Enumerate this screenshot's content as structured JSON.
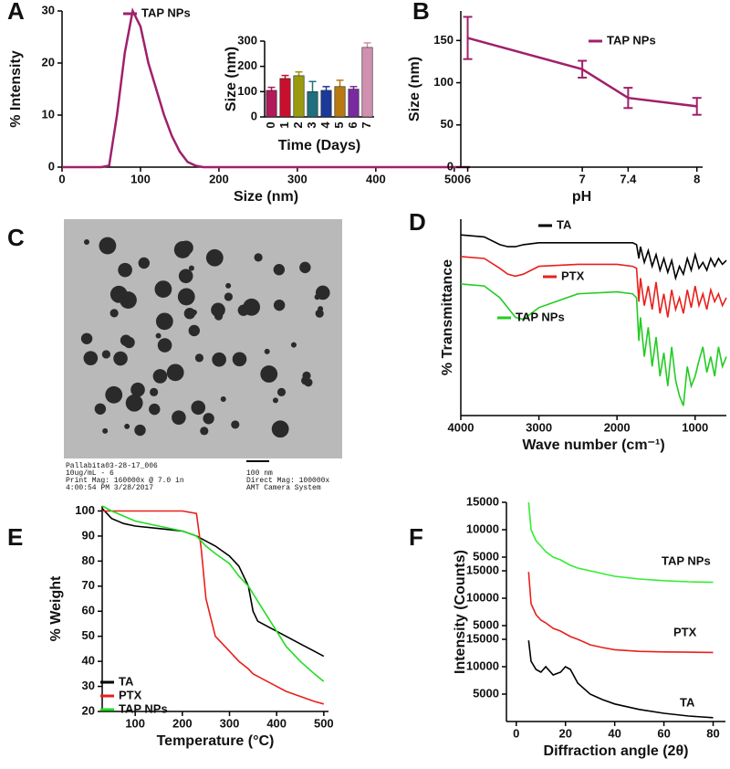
{
  "chart_data": [
    {
      "panel_label": "A",
      "type": "line",
      "xlabel": "Size (nm)",
      "ylabel": "% Intensity",
      "x": [
        0,
        50,
        60,
        70,
        80,
        90,
        100,
        110,
        120,
        130,
        140,
        150,
        160,
        170,
        180,
        200,
        300,
        400,
        500,
        520
      ],
      "xlim": [
        0,
        520
      ],
      "xticks": [
        0,
        100,
        200,
        300,
        400,
        500
      ],
      "ylim": [
        0,
        30
      ],
      "yticks": [
        0,
        10,
        20,
        30
      ],
      "series": [
        {
          "name": "TAP NPs",
          "color": "#a0206a",
          "values": [
            0,
            0,
            0.3,
            10,
            22,
            30,
            27,
            20,
            15,
            10,
            6,
            3,
            1,
            0.3,
            0,
            0,
            0,
            0,
            0,
            0
          ]
        }
      ]
    },
    {
      "type": "bar",
      "xlabel": "Time (Days)",
      "ylabel": "Size (nm)",
      "categories": [
        "0",
        "1",
        "2",
        "3",
        "4",
        "5",
        "6",
        "7"
      ],
      "values": [
        105,
        152,
        163,
        100,
        105,
        120,
        110,
        275
      ],
      "errors": [
        12,
        12,
        15,
        40,
        15,
        25,
        10,
        18
      ],
      "colors": [
        "#b0195a",
        "#c8102e",
        "#9a9a10",
        "#1f6f7f",
        "#1a3a9a",
        "#b87a10",
        "#7a2aa0",
        "#d090b0"
      ],
      "ylim": [
        0,
        300
      ],
      "yticks": [
        0,
        100,
        200,
        300
      ]
    },
    {
      "panel_label": "B",
      "type": "line",
      "xlabel": "pH",
      "ylabel": "Size (nm)",
      "x": [
        6,
        7,
        7.4,
        8
      ],
      "xlim": [
        5.94,
        8.05
      ],
      "xticks": [
        6,
        7,
        7.4,
        8
      ],
      "ylim": [
        0,
        185
      ],
      "yticks": [
        0,
        50,
        100,
        150
      ],
      "series": [
        {
          "name": "TAP NPs",
          "color": "#a0206a",
          "values": [
            153,
            116,
            82,
            72
          ],
          "errors": [
            25,
            10,
            12,
            10
          ]
        }
      ]
    },
    {
      "panel_label": "D",
      "type": "line",
      "xlabel": "Wave number (cm⁻¹)",
      "ylabel": "% Transmittance",
      "x": [
        4000,
        3700,
        3500,
        3400,
        3300,
        3200,
        3000,
        2500,
        2000,
        1800,
        1750,
        1720,
        1700,
        1650,
        1600,
        1550,
        1500,
        1450,
        1400,
        1350,
        1300,
        1250,
        1200,
        1150,
        1100,
        1050,
        1000,
        950,
        900,
        850,
        800,
        750,
        700,
        650,
        600
      ],
      "xlim": [
        4000,
        600
      ],
      "xticks": [
        4000,
        3000,
        2000,
        1000
      ],
      "ylim": [
        0,
        100
      ],
      "series": [
        {
          "name": "TA",
          "color": "#000000",
          "values": [
            92,
            91,
            87,
            86,
            86,
            87,
            88,
            88,
            88,
            88,
            87,
            80,
            86,
            78,
            84,
            76,
            82,
            74,
            80,
            73,
            79,
            70,
            76,
            72,
            80,
            74,
            82,
            75,
            78,
            74,
            80,
            76,
            80,
            77,
            79
          ]
        },
        {
          "name": "PTX",
          "color": "#e8201c",
          "values": [
            81,
            80,
            75,
            72,
            71,
            72,
            76,
            77,
            77,
            76,
            75,
            58,
            70,
            56,
            66,
            54,
            68,
            52,
            62,
            50,
            64,
            54,
            60,
            52,
            64,
            55,
            66,
            56,
            62,
            54,
            64,
            58,
            62,
            56,
            60
          ]
        },
        {
          "name": "TAP NPs",
          "color": "#22cc22",
          "values": [
            67,
            66,
            60,
            55,
            50,
            49,
            55,
            62,
            63,
            62,
            60,
            38,
            50,
            30,
            45,
            25,
            40,
            20,
            32,
            15,
            35,
            18,
            10,
            5,
            25,
            15,
            20,
            28,
            35,
            22,
            30,
            20,
            35,
            25,
            30
          ]
        }
      ]
    },
    {
      "panel_label": "E",
      "type": "line",
      "xlabel": "Temperature (°C)",
      "ylabel": "% Weight",
      "x": [
        30,
        50,
        75,
        100,
        150,
        200,
        230,
        240,
        250,
        270,
        300,
        320,
        340,
        350,
        360,
        380,
        400,
        420,
        450,
        480,
        500
      ],
      "xlim": [
        30,
        510
      ],
      "xticks": [
        100,
        200,
        300,
        400,
        500
      ],
      "ylim": [
        20,
        102
      ],
      "yticks": [
        20,
        30,
        40,
        50,
        60,
        70,
        80,
        90,
        100
      ],
      "series": [
        {
          "name": "TA",
          "color": "#000000",
          "values": [
            101,
            97,
            95,
            94,
            93,
            92,
            90,
            89,
            88,
            86,
            82,
            78,
            70,
            60,
            56,
            54,
            52,
            50,
            47,
            44,
            42
          ]
        },
        {
          "name": "PTX",
          "color": "#e8201c",
          "values": [
            100,
            100,
            100,
            100,
            100,
            100,
            99,
            85,
            65,
            50,
            44,
            40,
            37,
            35,
            34,
            32,
            30,
            28,
            26,
            24,
            23
          ]
        },
        {
          "name": "TAP NPs",
          "color": "#22dd22",
          "values": [
            102,
            100,
            98,
            96,
            94,
            92,
            90,
            88,
            86,
            83,
            79,
            74,
            70,
            67,
            64,
            58,
            52,
            46,
            40,
            35,
            32
          ]
        }
      ]
    },
    {
      "panel_label": "F",
      "type": "stacked_line",
      "xlabel": "Diffraction angle (2θ)",
      "ylabel": "Intensity (Counts)",
      "x": [
        5,
        6,
        8,
        10,
        12,
        15,
        18,
        20,
        22,
        25,
        30,
        35,
        40,
        50,
        60,
        70,
        80
      ],
      "xlim": [
        -4,
        85
      ],
      "xticks": [
        0,
        20,
        40,
        60,
        80
      ],
      "series": [
        {
          "name": "TA",
          "color": "#000000",
          "ylim": [
            0,
            15000
          ],
          "yticks": [
            5000,
            10000,
            15000
          ],
          "values": [
            14800,
            11000,
            9500,
            9000,
            10000,
            8500,
            9000,
            10000,
            9500,
            7000,
            5000,
            4000,
            3200,
            2200,
            1500,
            1000,
            700
          ]
        },
        {
          "name": "PTX",
          "color": "#e8201c",
          "ylim": [
            0,
            15000
          ],
          "yticks": [
            5000,
            10000,
            15000
          ],
          "values": [
            14800,
            9000,
            7000,
            6000,
            5500,
            4500,
            4000,
            3500,
            3000,
            2500,
            1500,
            1000,
            600,
            300,
            200,
            150,
            100
          ]
        },
        {
          "name": "TAP NPs",
          "color": "#33ee33",
          "ylim": [
            0,
            15000
          ],
          "yticks": [
            5000,
            10000,
            15000
          ],
          "values": [
            15000,
            10000,
            8000,
            7000,
            6000,
            5000,
            4500,
            4000,
            3500,
            3000,
            2500,
            2000,
            1500,
            1000,
            700,
            500,
            400
          ]
        }
      ]
    }
  ],
  "image_panel": {
    "panel_label": "C",
    "caption": [
      "Pallabita03-28-17_006",
      "10ug/mL - 6",
      "Print Mag:  160000x @ 7.0 in",
      "4:00:54 PM 3/28/2017"
    ],
    "caption_right": [
      "100 nm",
      "Direct Mag: 100000x",
      "AMT Camera System"
    ]
  }
}
